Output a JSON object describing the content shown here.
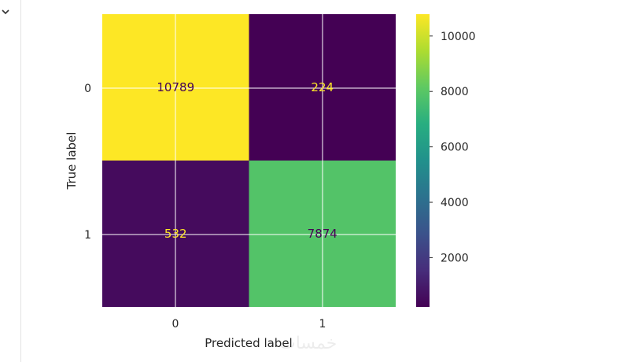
{
  "chart_data": {
    "type": "heatmap",
    "title": "",
    "xlabel": "Predicted label",
    "ylabel": "True label",
    "x_categories": [
      "0",
      "1"
    ],
    "y_categories": [
      "0",
      "1"
    ],
    "values": [
      [
        10789,
        224
      ],
      [
        532,
        7874
      ]
    ],
    "value_labels": [
      "10789",
      "224",
      "532",
      "7874"
    ],
    "colormap": "viridis",
    "colorbar_range": [
      224,
      10789
    ],
    "colorbar_ticks": [
      "2000",
      "4000",
      "6000",
      "8000",
      "10000"
    ],
    "grid": true
  },
  "watermark": "خمسات",
  "colors": {
    "high": "#fde725",
    "low": "#440154",
    "mid_green": "#4ec36b",
    "grid": "#ffffff",
    "text": "#262626"
  }
}
